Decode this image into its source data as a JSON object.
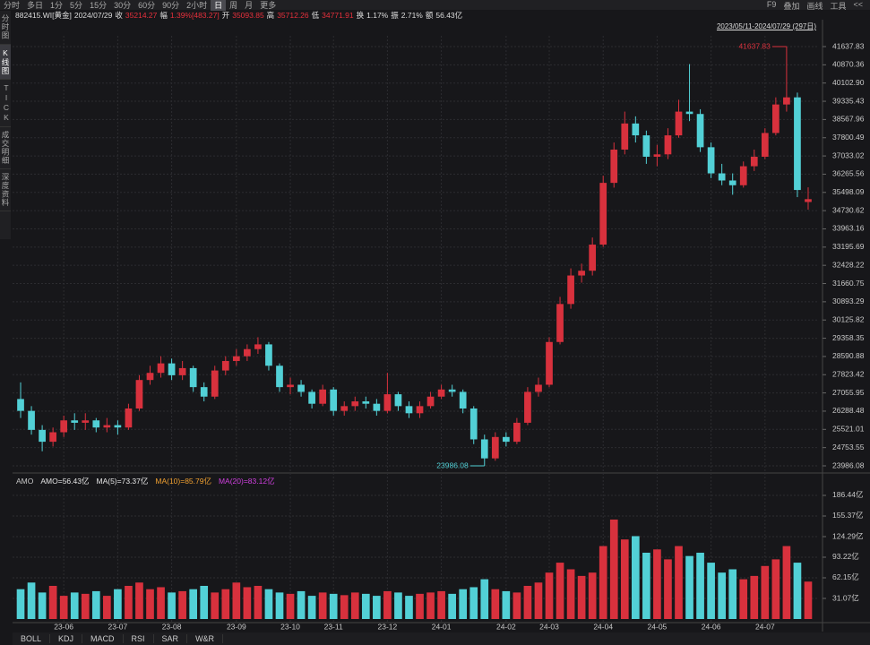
{
  "toolbar": {
    "left": [
      "分时",
      "多日",
      "1分",
      "5分",
      "15分",
      "30分",
      "60分",
      "90分",
      "2小时",
      "日",
      "周",
      "月",
      "更多"
    ],
    "right": [
      "F9",
      "叠加",
      "画线",
      "工具",
      "<<"
    ]
  },
  "info": {
    "code": "882415.WI[黄金]",
    "date": "2024/07/29",
    "fields": [
      {
        "label": "收",
        "value": "35214.27"
      },
      {
        "label": "幅",
        "value": "1.39%[483.27]"
      },
      {
        "label": "开",
        "value": "35093.85"
      },
      {
        "label": "高",
        "value": "35712.26"
      },
      {
        "label": "低",
        "value": "34771.91"
      },
      {
        "label": "换",
        "value": "1.17%"
      },
      {
        "label": "振",
        "value": "2.71%"
      },
      {
        "label": "额",
        "value": "56.43亿"
      }
    ]
  },
  "sidebar": [
    "分时图",
    "K线图",
    "TICK",
    "成交明细",
    "深度资料"
  ],
  "bottom_tabs": [
    "BOLL",
    "KDJ",
    "MACD",
    "RSI",
    "SAR",
    "W&R"
  ],
  "chart_data": [
    {
      "type": "candlestick",
      "subtitle": "2023/05/11-2024/07/29 (297日)",
      "high_label": "41637.83",
      "low_label": "23986.08",
      "up_color": "#d8313d",
      "down_color": "#52d0d6",
      "grid": true,
      "ylim": [
        23986.08,
        41637.83
      ],
      "yticks": [
        41637.83,
        40870.36,
        {
          "value": 40102.9,
          "label": "40102.90"
        },
        39335.43,
        38567.96,
        37800.49,
        37033.02,
        36265.56,
        35498.09,
        34730.62,
        33963.16,
        33195.69,
        32428.22,
        31660.75,
        30893.29,
        30125.82,
        29358.35,
        28590.88,
        27823.42,
        27055.95,
        26288.48,
        25521.01,
        24753.55,
        23986.08
      ],
      "ohlc": [
        [
          26800,
          27500,
          26000,
          26300
        ],
        [
          26300,
          26500,
          25300,
          25500
        ],
        [
          25500,
          25700,
          24600,
          25000
        ],
        [
          25000,
          25600,
          24800,
          25400
        ],
        [
          25400,
          26100,
          25200,
          25900
        ],
        [
          25900,
          26200,
          25500,
          25800
        ],
        [
          25800,
          26200,
          25500,
          25900
        ],
        [
          25900,
          26000,
          25400,
          25600
        ],
        [
          25600,
          26000,
          25400,
          25700
        ],
        [
          25700,
          25900,
          25300,
          25600
        ],
        [
          25600,
          26600,
          25500,
          26400
        ],
        [
          26400,
          27800,
          26300,
          27600
        ],
        [
          27600,
          28200,
          27400,
          27900
        ],
        [
          27900,
          28600,
          27700,
          28300
        ],
        [
          28300,
          28500,
          27600,
          27800
        ],
        [
          27800,
          28400,
          27600,
          28100
        ],
        [
          28100,
          28200,
          27100,
          27300
        ],
        [
          27300,
          27500,
          26700,
          26900
        ],
        [
          26900,
          28200,
          26800,
          28000
        ],
        [
          28000,
          28600,
          27800,
          28400
        ],
        [
          28400,
          28900,
          28200,
          28600
        ],
        [
          28600,
          29100,
          28400,
          28900
        ],
        [
          28900,
          29400,
          28700,
          29100
        ],
        [
          29100,
          29200,
          28000,
          28200
        ],
        [
          28200,
          28300,
          27100,
          27300
        ],
        [
          27300,
          27700,
          27000,
          27400
        ],
        [
          27400,
          27600,
          26900,
          27100
        ],
        [
          27100,
          27200,
          26400,
          26600
        ],
        [
          26600,
          27400,
          26500,
          27200
        ],
        [
          27200,
          27300,
          26100,
          26300
        ],
        [
          26300,
          26700,
          26100,
          26500
        ],
        [
          26500,
          26900,
          26300,
          26700
        ],
        [
          26700,
          26900,
          26400,
          26600
        ],
        [
          26600,
          26800,
          26100,
          26300
        ],
        [
          26300,
          27900,
          26200,
          27000
        ],
        [
          27000,
          27100,
          26300,
          26500
        ],
        [
          26500,
          26700,
          26000,
          26200
        ],
        [
          26200,
          26700,
          26000,
          26500
        ],
        [
          26500,
          27100,
          26400,
          26900
        ],
        [
          26900,
          27400,
          26800,
          27200
        ],
        [
          27200,
          27400,
          26900,
          27100
        ],
        [
          27100,
          27200,
          26200,
          26400
        ],
        [
          26400,
          26500,
          24900,
          25100
        ],
        [
          25100,
          25300,
          23986.08,
          24300
        ],
        [
          24300,
          25400,
          24200,
          25200
        ],
        [
          25200,
          25400,
          24800,
          25000
        ],
        [
          25000,
          26000,
          24900,
          25800
        ],
        [
          25800,
          27300,
          25700,
          27100
        ],
        [
          27100,
          27700,
          26900,
          27400
        ],
        [
          27400,
          29400,
          27300,
          29200
        ],
        [
          29200,
          31100,
          29100,
          30800
        ],
        [
          30800,
          32300,
          30600,
          32000
        ],
        [
          32000,
          32500,
          31700,
          32200
        ],
        [
          32200,
          33600,
          32000,
          33300
        ],
        [
          33300,
          36200,
          33200,
          35900
        ],
        [
          35900,
          37600,
          35700,
          37300
        ],
        [
          37300,
          38900,
          37100,
          38400
        ],
        [
          38400,
          38700,
          37600,
          37900
        ],
        [
          37900,
          38100,
          36700,
          37000
        ],
        [
          37000,
          37500,
          36600,
          37100
        ],
        [
          37100,
          38200,
          36900,
          37900
        ],
        [
          37900,
          39400,
          37800,
          38900
        ],
        [
          38900,
          40900,
          38500,
          38800
        ],
        [
          38800,
          39000,
          37200,
          37400
        ],
        [
          37400,
          37600,
          36100,
          36300
        ],
        [
          36300,
          36700,
          35800,
          36000
        ],
        [
          36000,
          36300,
          35400,
          35800
        ],
        [
          35800,
          36800,
          35700,
          36600
        ],
        [
          36600,
          37300,
          36400,
          37000
        ],
        [
          37000,
          38200,
          36900,
          38000
        ],
        [
          38000,
          39500,
          37900,
          39200
        ],
        [
          39200,
          41637.83,
          38900,
          39500
        ],
        [
          39500,
          39700,
          35300,
          35600
        ],
        [
          35093.85,
          35712.26,
          34771.91,
          35214.27
        ]
      ]
    },
    {
      "type": "bar",
      "title": "AMO",
      "legend": [
        {
          "text": "AMO=56.43亿",
          "color": "#e6e6e6"
        },
        {
          "text": "MA(5)=73.37亿",
          "color": "#e6e6e6"
        },
        {
          "text": "MA(10)=85.79亿",
          "color": "#f0a030"
        },
        {
          "text": "MA(20)=83.12亿",
          "color": "#d040e0"
        }
      ],
      "ylim": [
        0,
        204
      ],
      "yticks": [
        {
          "value": 186.44,
          "label": "186.44亿"
        },
        {
          "value": 155.37,
          "label": "155.37亿"
        },
        {
          "value": 124.29,
          "label": "124.29亿"
        },
        {
          "value": 93.22,
          "label": "93.22亿"
        },
        {
          "value": 62.15,
          "label": "62.15亿"
        },
        {
          "value": 31.07,
          "label": "31.07亿"
        }
      ],
      "categories": [
        null,
        null,
        null,
        null,
        "23-06",
        null,
        null,
        null,
        null,
        "23-07",
        null,
        null,
        null,
        null,
        "23-08",
        null,
        null,
        null,
        null,
        null,
        "23-09",
        null,
        null,
        null,
        null,
        "23-10",
        null,
        null,
        null,
        "23-11",
        null,
        null,
        null,
        null,
        "23-12",
        null,
        null,
        null,
        null,
        "24-01",
        null,
        null,
        null,
        null,
        null,
        "24-02",
        null,
        null,
        null,
        "24-03",
        null,
        null,
        null,
        null,
        "24-04",
        null,
        null,
        null,
        null,
        "24-05",
        null,
        null,
        null,
        null,
        "24-06",
        null,
        null,
        null,
        null,
        "24-07",
        null,
        null,
        null,
        null
      ],
      "values": [
        45,
        55,
        40,
        50,
        35,
        40,
        38,
        42,
        35,
        45,
        50,
        55,
        45,
        48,
        40,
        42,
        45,
        50,
        40,
        45,
        55,
        48,
        50,
        45,
        40,
        38,
        42,
        35,
        40,
        38,
        36,
        40,
        38,
        35,
        42,
        40,
        35,
        38,
        40,
        42,
        38,
        45,
        48,
        60,
        45,
        42,
        40,
        50,
        55,
        70,
        85,
        75,
        65,
        70,
        110,
        150,
        120,
        125,
        100,
        105,
        90,
        110,
        95,
        100,
        85,
        70,
        75,
        60,
        65,
        80,
        90,
        110,
        85,
        56.43
      ]
    }
  ]
}
